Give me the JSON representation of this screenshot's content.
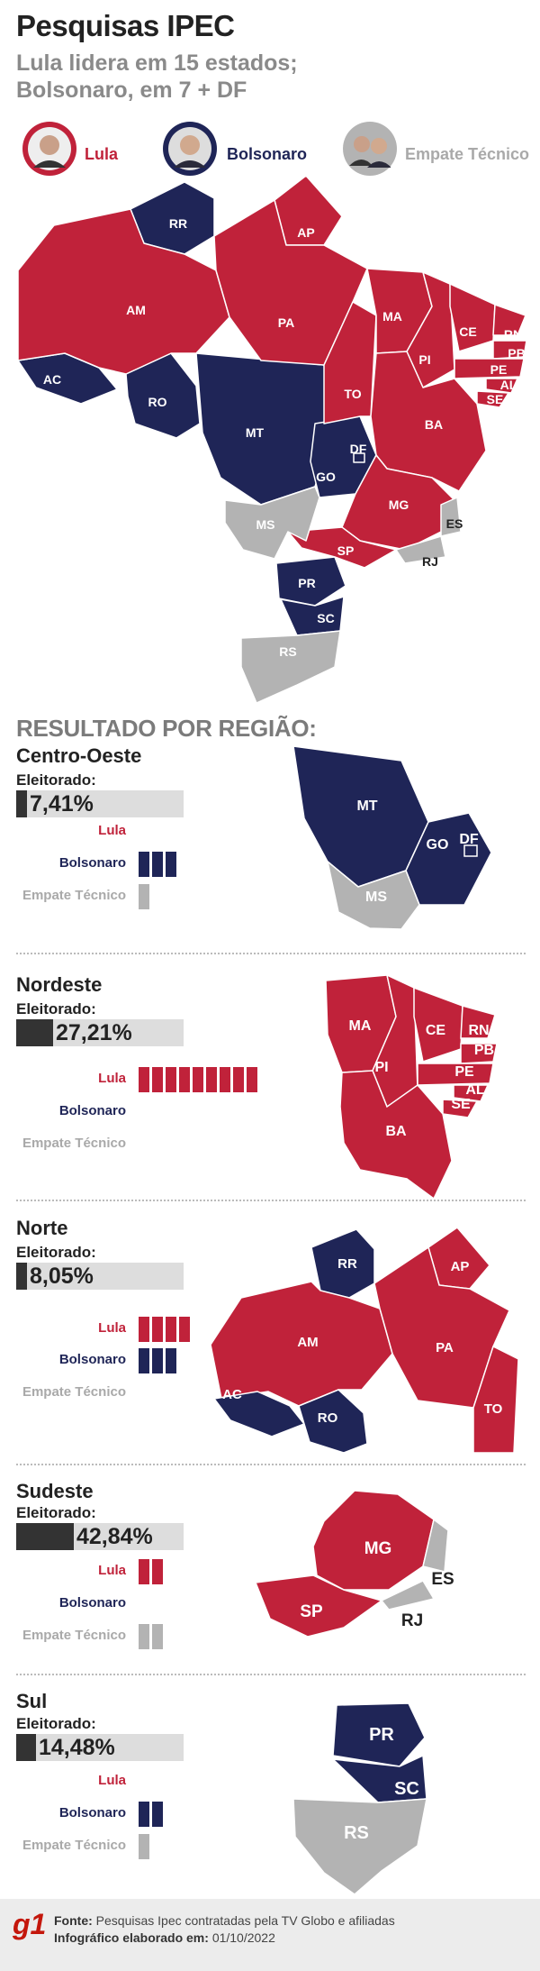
{
  "header": {
    "title": "Pesquisas IPEC",
    "subtitle_line1": "Lula lidera em 15 estados;",
    "subtitle_line2": "Bolsonaro, em 7 + DF"
  },
  "legend": {
    "lula": "Lula",
    "bolsonaro": "Bolsonaro",
    "empate": "Empate Técnico"
  },
  "colors": {
    "lula": "#c0223a",
    "bolsonaro": "#1f2557",
    "empate": "#b3b3b3",
    "elector_bar": "#333333"
  },
  "states": {
    "rr": "RR",
    "ap": "AP",
    "am": "AM",
    "pa": "PA",
    "ma": "MA",
    "ce": "CE",
    "rn": "RN",
    "pb": "PB",
    "pe": "PE",
    "al": "AL",
    "se": "SE",
    "pi": "PI",
    "ac": "AC",
    "ro": "RO",
    "mt": "MT",
    "to": "TO",
    "ba": "BA",
    "df": "DF",
    "go": "GO",
    "mg": "MG",
    "ms": "MS",
    "es": "ES",
    "sp": "SP",
    "rj": "RJ",
    "pr": "PR",
    "sc": "SC",
    "rs": "RS"
  },
  "regions_heading": "RESULTADO POR REGIÃO:",
  "electorate_label": "Eleitorado:",
  "regions": [
    {
      "name": "Centro-Oeste",
      "electorate_text": "7,41%",
      "electorate_pct": 7.41,
      "lula": 0,
      "bolsonaro": 3,
      "empate": 1
    },
    {
      "name": "Nordeste",
      "electorate_text": "27,21%",
      "electorate_pct": 27.21,
      "lula": 9,
      "bolsonaro": 0,
      "empate": 0
    },
    {
      "name": "Norte",
      "electorate_text": "8,05%",
      "electorate_pct": 8.05,
      "lula": 4,
      "bolsonaro": 3,
      "empate": 0
    },
    {
      "name": "Sudeste",
      "electorate_text": "42,84%",
      "electorate_pct": 42.84,
      "lula": 2,
      "bolsonaro": 0,
      "empate": 2
    },
    {
      "name": "Sul",
      "electorate_text": "14,48%",
      "electorate_pct": 14.48,
      "lula": 0,
      "bolsonaro": 2,
      "empate": 1
    }
  ],
  "footer": {
    "logo": "g1",
    "source_label": "Fonte:",
    "source_text": "Pesquisas Ipec contratadas pela TV Globo e afiliadas",
    "date_label": "Infográfico elaborado em:",
    "date_text": "01/10/2022"
  }
}
